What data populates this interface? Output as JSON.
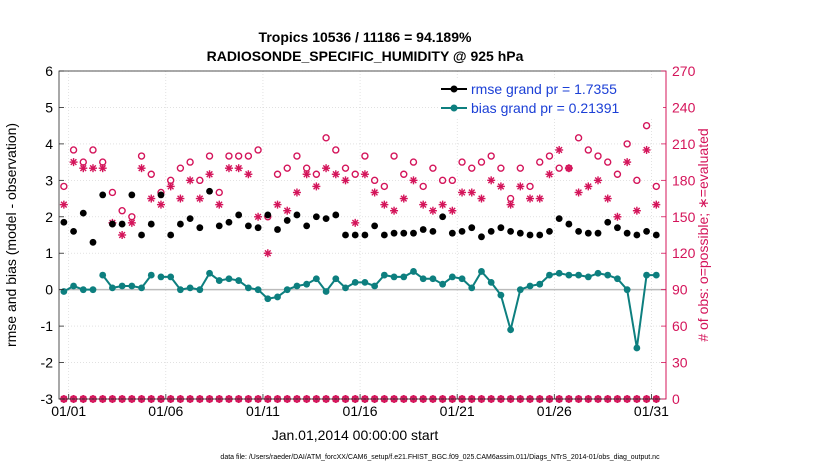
{
  "chart_data": {
    "type": "line",
    "title": "Tropics 10536 / 11186 = 94.189%",
    "subtitle": "RADIOSONDE_SPECIFIC_HUMIDITY @ 925 hPa",
    "xlabel": "Jan.01,2014 00:00:00 start",
    "ylabel": "rmse and bias (model - observation)",
    "y2label": "# of obs: o=possible; ∗=evaluated",
    "footnote": "data file: /Users/raeder/DAI/ATM_forcXX/CAM6_setup/f.e21.FHIST_BGC.f09_025.CAM6assim.011/Diags_NTrS_2014-01/obs_diag_output.nc",
    "xlim": [
      0.5,
      31.75
    ],
    "ylim": [
      -3,
      6
    ],
    "y2lim": [
      0,
      270
    ],
    "x_ticks": [
      1,
      6,
      11,
      16,
      21,
      26,
      31
    ],
    "x_tick_labels": [
      "01/01",
      "01/06",
      "01/11",
      "01/16",
      "01/21",
      "01/26",
      "01/31"
    ],
    "y_ticks": [
      -3,
      -2,
      -1,
      0,
      1,
      2,
      3,
      4,
      5,
      6
    ],
    "y2_ticks": [
      0,
      30,
      60,
      90,
      120,
      150,
      180,
      210,
      240,
      270
    ],
    "legend": {
      "location": "top-right",
      "entries": [
        "rmse grand pr = 1.7355",
        "bias grand pr = 0.21391"
      ]
    },
    "colors": {
      "rmse": "#000000",
      "bias": "#0d7f7f",
      "counts": "#d4145a",
      "axis_right": "#d4145a",
      "zero_line": "#bbbbbb",
      "legend_text": "#1b3fd6"
    },
    "x": [
      0.75,
      1.25,
      1.75,
      2.25,
      2.75,
      3.25,
      3.75,
      4.25,
      4.75,
      5.25,
      5.75,
      6.25,
      6.75,
      7.25,
      7.75,
      8.25,
      8.75,
      9.25,
      9.75,
      10.25,
      10.75,
      11.25,
      11.75,
      12.25,
      12.75,
      13.25,
      13.75,
      14.25,
      14.75,
      15.25,
      15.75,
      16.25,
      16.75,
      17.25,
      17.75,
      18.25,
      18.75,
      19.25,
      19.75,
      20.25,
      20.75,
      21.25,
      21.75,
      22.25,
      22.75,
      23.25,
      23.75,
      24.25,
      24.75,
      25.25,
      25.75,
      26.25,
      26.75,
      27.25,
      27.75,
      28.25,
      28.75,
      29.25,
      29.75,
      30.25,
      30.75,
      31.25
    ],
    "series": [
      {
        "name": "rmse",
        "marker": "filled-circle",
        "values": [
          1.85,
          1.6,
          2.1,
          1.3,
          2.6,
          1.8,
          1.8,
          2.6,
          1.5,
          1.8,
          2.6,
          1.5,
          1.8,
          1.95,
          1.7,
          2.7,
          1.75,
          1.85,
          2.05,
          1.75,
          1.7,
          2.05,
          1.65,
          1.9,
          2.05,
          1.75,
          2.0,
          1.95,
          2.05,
          1.5,
          1.5,
          1.5,
          1.75,
          1.5,
          1.55,
          1.55,
          1.55,
          1.65,
          1.6,
          2.0,
          1.55,
          1.6,
          1.7,
          1.45,
          1.6,
          1.7,
          1.6,
          1.55,
          1.5,
          1.5,
          1.6,
          1.95,
          1.8,
          1.6,
          1.55,
          1.55,
          1.85,
          1.7,
          1.55,
          1.5,
          1.6,
          1.5
        ]
      },
      {
        "name": "bias",
        "marker": "filled-circle",
        "breaks_after_x": [
          2.25,
          5.25
        ],
        "values": [
          -0.05,
          0.1,
          0.0,
          0.0,
          0.4,
          0.05,
          0.1,
          0.1,
          0.05,
          0.4,
          0.35,
          0.35,
          0.0,
          0.05,
          0.0,
          0.45,
          0.25,
          0.3,
          0.25,
          0.05,
          0.0,
          -0.25,
          -0.2,
          0.0,
          0.1,
          0.15,
          0.3,
          -0.05,
          0.3,
          0.05,
          0.2,
          0.2,
          0.1,
          0.4,
          0.35,
          0.35,
          0.5,
          0.3,
          0.3,
          0.15,
          0.35,
          0.3,
          0.05,
          0.5,
          0.2,
          -0.15,
          -1.1,
          0.0,
          0.1,
          0.15,
          0.4,
          0.45,
          0.4,
          0.4,
          0.35,
          0.45,
          0.4,
          0.3,
          0.0,
          -1.6,
          0.4,
          0.4
        ]
      },
      {
        "name": "possible",
        "axis": "right",
        "marker": "open-circle",
        "values": [
          175,
          205,
          195,
          205,
          195,
          170,
          155,
          150,
          200,
          185,
          170,
          180,
          190,
          195,
          180,
          200,
          170,
          200,
          200,
          200,
          205,
          150,
          185,
          190,
          200,
          190,
          185,
          215,
          205,
          190,
          185,
          200,
          180,
          175,
          200,
          185,
          195,
          175,
          190,
          180,
          180,
          195,
          190,
          195,
          200,
          190,
          165,
          190,
          175,
          195,
          200,
          190,
          190,
          215,
          205,
          200,
          195,
          185,
          210,
          180,
          225,
          175
        ]
      },
      {
        "name": "evaluated",
        "axis": "right",
        "marker": "asterisk",
        "values": [
          160,
          195,
          190,
          190,
          190,
          145,
          135,
          145,
          190,
          165,
          160,
          175,
          165,
          180,
          165,
          185,
          160,
          190,
          190,
          185,
          150,
          120,
          160,
          155,
          170,
          185,
          175,
          190,
          185,
          180,
          145,
          185,
          170,
          160,
          155,
          165,
          180,
          160,
          155,
          160,
          155,
          170,
          170,
          165,
          180,
          175,
          160,
          175,
          165,
          165,
          185,
          205,
          190,
          170,
          175,
          180,
          165,
          150,
          195,
          155,
          205,
          160
        ]
      },
      {
        "name": "possible_surface",
        "axis": "right",
        "marker": "open-circle",
        "values": [
          0,
          0,
          0,
          0,
          0,
          0,
          0,
          0,
          0,
          0,
          0,
          0,
          0,
          0,
          0,
          0,
          0,
          0,
          0,
          0,
          0,
          0,
          0,
          0,
          0,
          0,
          0,
          0,
          0,
          0,
          0,
          0,
          0,
          0,
          0,
          0,
          0,
          0,
          0,
          0,
          0,
          0,
          0,
          0,
          0,
          0,
          0,
          0,
          0,
          0,
          0,
          0,
          0,
          0,
          0,
          0,
          0,
          0,
          0,
          0,
          0,
          0
        ]
      },
      {
        "name": "evaluated_surface",
        "axis": "right",
        "marker": "asterisk",
        "values": [
          0,
          0,
          0,
          0,
          0,
          0,
          0,
          0,
          0,
          0,
          0,
          0,
          0,
          0,
          0,
          0,
          0,
          0,
          0,
          0,
          0,
          0,
          0,
          0,
          0,
          0,
          0,
          0,
          0,
          0,
          0,
          0,
          0,
          0,
          0,
          0,
          0,
          0,
          0,
          0,
          0,
          0,
          0,
          0,
          0,
          0,
          0,
          0,
          0,
          0,
          0,
          0,
          0,
          0,
          0,
          0,
          0,
          0,
          0,
          0,
          0,
          0
        ]
      }
    ]
  }
}
